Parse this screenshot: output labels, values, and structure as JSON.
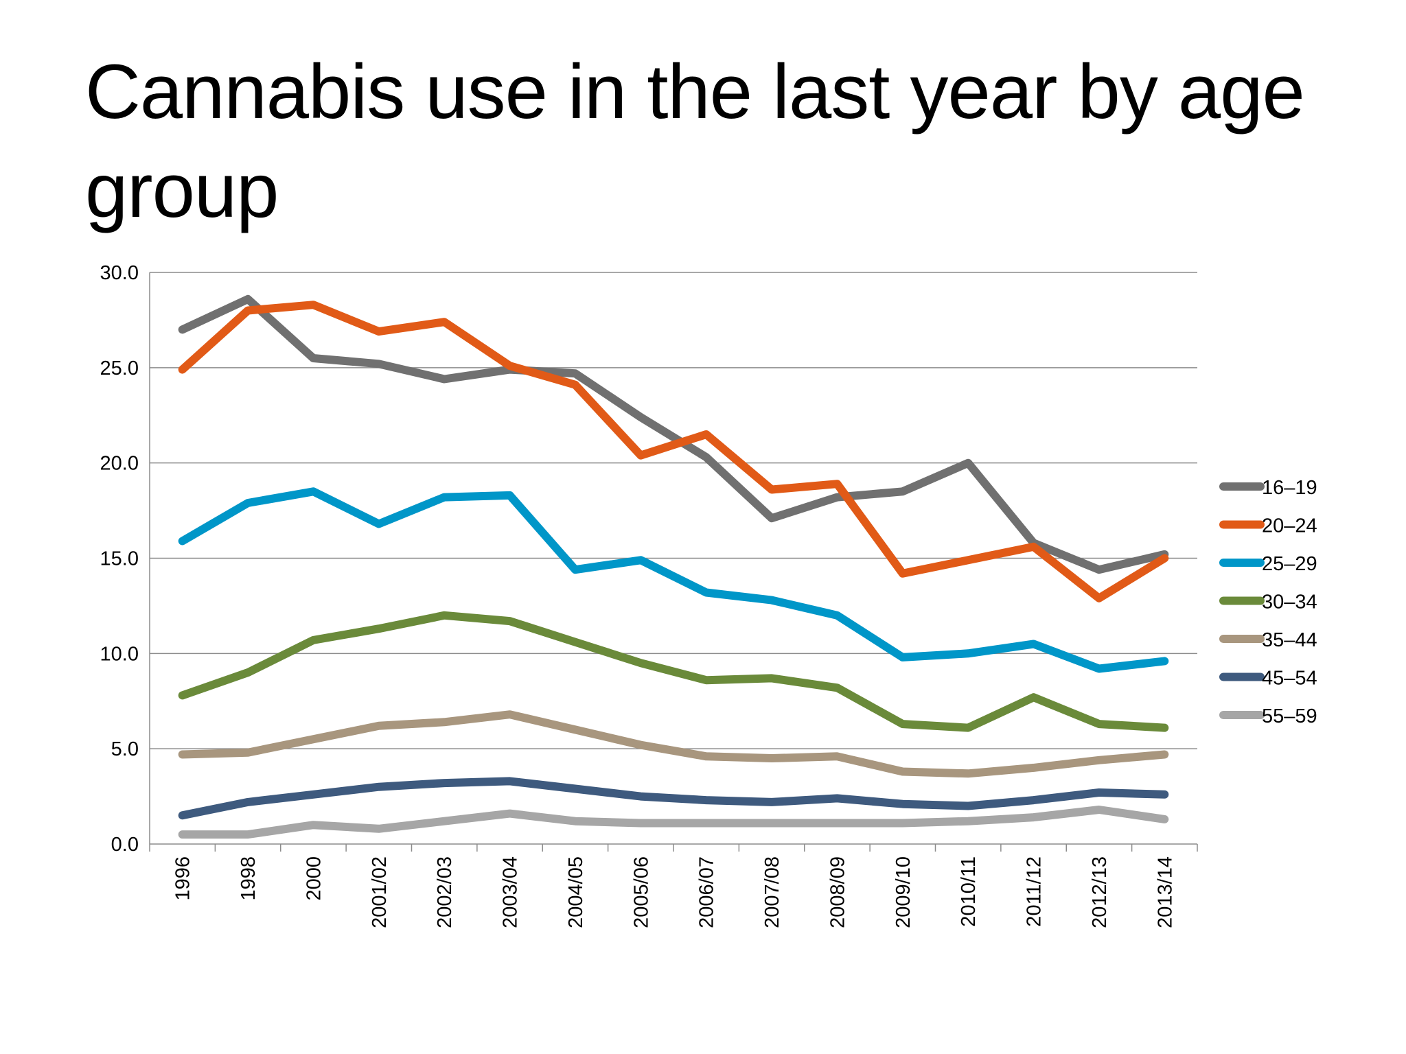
{
  "slide": {
    "title": "Cannabis use in the last year by age group"
  },
  "chart_data": {
    "type": "line",
    "categories": [
      "1996",
      "1998",
      "2000",
      "2001/02",
      "2002/03",
      "2003/04",
      "2004/05",
      "2005/06",
      "2006/07",
      "2007/08",
      "2008/09",
      "2009/10",
      "2010/11",
      "2011/12",
      "2012/13",
      "2013/14"
    ],
    "ylim": [
      0,
      30
    ],
    "yticks": [
      "0.0",
      "5.0",
      "10.0",
      "15.0",
      "20.0",
      "25.0",
      "30.0"
    ],
    "grid": "horizontal",
    "legend_position": "right",
    "series": [
      {
        "name": "16–19",
        "color": "#707070",
        "values": [
          27.0,
          28.6,
          25.5,
          25.2,
          24.4,
          24.9,
          24.7,
          22.4,
          20.3,
          17.1,
          18.2,
          18.5,
          20.0,
          15.8,
          14.4,
          15.2
        ]
      },
      {
        "name": "20–24",
        "color": "#E15A17",
        "values": [
          24.9,
          28.0,
          28.3,
          26.9,
          27.4,
          25.1,
          24.1,
          20.4,
          21.5,
          18.6,
          18.9,
          14.2,
          14.9,
          15.6,
          12.9,
          15.0
        ]
      },
      {
        "name": "25–29",
        "color": "#0096C8",
        "values": [
          15.9,
          17.9,
          18.5,
          16.8,
          18.2,
          18.3,
          14.4,
          14.9,
          13.2,
          12.8,
          12.0,
          9.8,
          10.0,
          10.5,
          9.2,
          9.6
        ]
      },
      {
        "name": "30–34",
        "color": "#6A8A3A",
        "values": [
          7.8,
          9.0,
          10.7,
          11.3,
          12.0,
          11.7,
          10.6,
          9.5,
          8.6,
          8.7,
          8.2,
          6.3,
          6.1,
          7.7,
          6.3,
          6.1
        ]
      },
      {
        "name": "35–44",
        "color": "#A8967E",
        "values": [
          4.7,
          4.8,
          5.5,
          6.2,
          6.4,
          6.8,
          6.0,
          5.2,
          4.6,
          4.5,
          4.6,
          3.8,
          3.7,
          4.0,
          4.4,
          4.7
        ]
      },
      {
        "name": "45–54",
        "color": "#3E5A7E",
        "values": [
          1.5,
          2.2,
          2.6,
          3.0,
          3.2,
          3.3,
          2.9,
          2.5,
          2.3,
          2.2,
          2.4,
          2.1,
          2.0,
          2.3,
          2.7,
          2.6
        ]
      },
      {
        "name": "55–59",
        "color": "#A6A6A6",
        "values": [
          0.5,
          0.5,
          1.0,
          0.8,
          1.2,
          1.6,
          1.2,
          1.1,
          1.1,
          1.1,
          1.1,
          1.1,
          1.2,
          1.4,
          1.8,
          1.3
        ]
      }
    ]
  }
}
